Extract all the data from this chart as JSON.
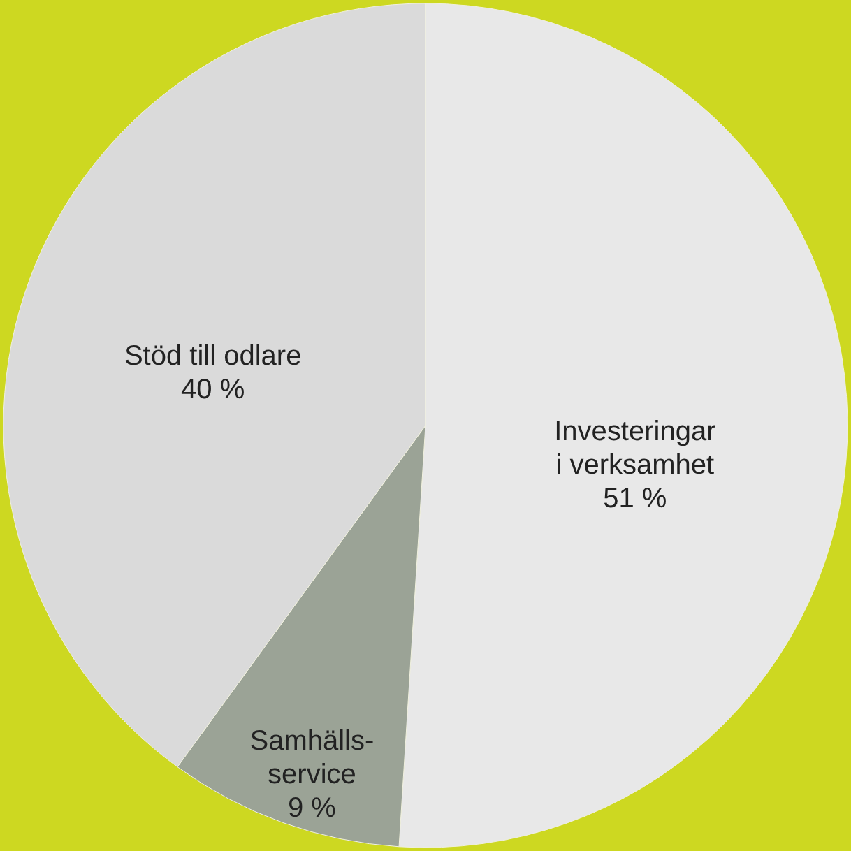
{
  "chart_data": {
    "type": "pie",
    "categories": [
      "Investeringar\ni verksamhet",
      "Samhälls-\nservice",
      "Stöd till odlare"
    ],
    "values": [
      51,
      9,
      40
    ],
    "colors": [
      "#e8e8e8",
      "#9ba396",
      "#dadada"
    ],
    "value_labels": [
      "51 %",
      "9 %",
      "40 %"
    ]
  }
}
